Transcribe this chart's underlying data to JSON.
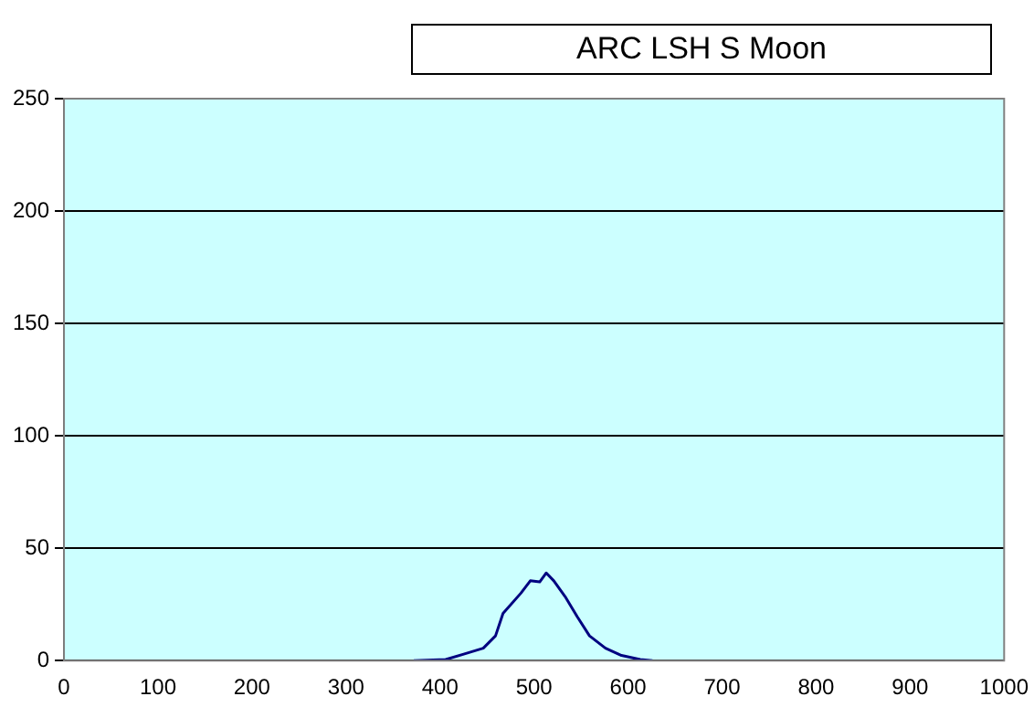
{
  "chart_data": {
    "type": "line",
    "title": "ARC LSH S Moon",
    "x": [
      372,
      406,
      426,
      446,
      459,
      467,
      486,
      496,
      506,
      513,
      521,
      533,
      546,
      559,
      576,
      593,
      613,
      626
    ],
    "series": [
      {
        "color": "#000080",
        "values": [
          0,
          0.5,
          3,
          5.5,
          11,
          21,
          30,
          35.5,
          35,
          39,
          35.5,
          28.5,
          19.5,
          11,
          5.5,
          2.3,
          0.5,
          0
        ]
      }
    ],
    "xlim": [
      0,
      1000
    ],
    "xticks": [
      0,
      100,
      200,
      300,
      400,
      500,
      600,
      700,
      800,
      900,
      1000
    ],
    "ylim": [
      0,
      250
    ],
    "yticks": [
      0,
      50,
      100,
      150,
      200,
      250
    ],
    "grid": "y",
    "legend": false,
    "marker": "none",
    "line_style": "solid"
  }
}
